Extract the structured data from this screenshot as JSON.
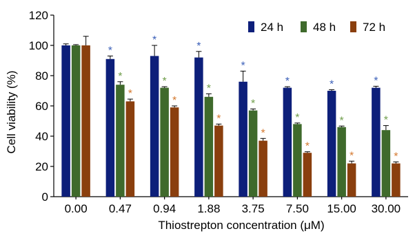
{
  "chart_data": {
    "type": "bar",
    "xlabel": "Thiostrepton concentration (μM)",
    "ylabel": "Cell viability (%)",
    "ylim": [
      0,
      120
    ],
    "yticks": [
      "0",
      "20",
      "40",
      "60",
      "80",
      "100",
      "120"
    ],
    "categories": [
      "0.00",
      "0.47",
      "0.94",
      "1.88",
      "3.75",
      "7.50",
      "15.00",
      "30.00"
    ],
    "legend_position": "top-right",
    "significance_marker": "*",
    "series": [
      {
        "name": "24 h",
        "color": "#0d1f7a",
        "star_color": "#3a5fb8",
        "values": [
          100,
          91,
          93,
          92,
          76,
          72,
          70,
          72
        ],
        "errors": [
          1,
          2,
          7,
          4,
          7,
          0.7,
          0.7,
          1
        ],
        "significant": [
          false,
          true,
          true,
          true,
          true,
          true,
          true,
          true
        ]
      },
      {
        "name": "48 h",
        "color": "#3f6a2c",
        "star_color": "#6f9d4a",
        "values": [
          100,
          74,
          72,
          66,
          57,
          48,
          46,
          44
        ],
        "errors": [
          0.5,
          2,
          0.7,
          2,
          1,
          0.7,
          0.7,
          3
        ],
        "significant": [
          false,
          true,
          true,
          true,
          true,
          true,
          true,
          true
        ]
      },
      {
        "name": "72 h",
        "color": "#8a3f0e",
        "star_color": "#d4782e",
        "values": [
          100,
          63,
          59,
          47,
          37,
          29,
          22,
          22
        ],
        "errors": [
          6,
          1.5,
          1,
          1,
          1.5,
          0.7,
          1.5,
          1
        ],
        "significant": [
          false,
          true,
          true,
          true,
          true,
          true,
          true,
          true
        ]
      }
    ]
  }
}
